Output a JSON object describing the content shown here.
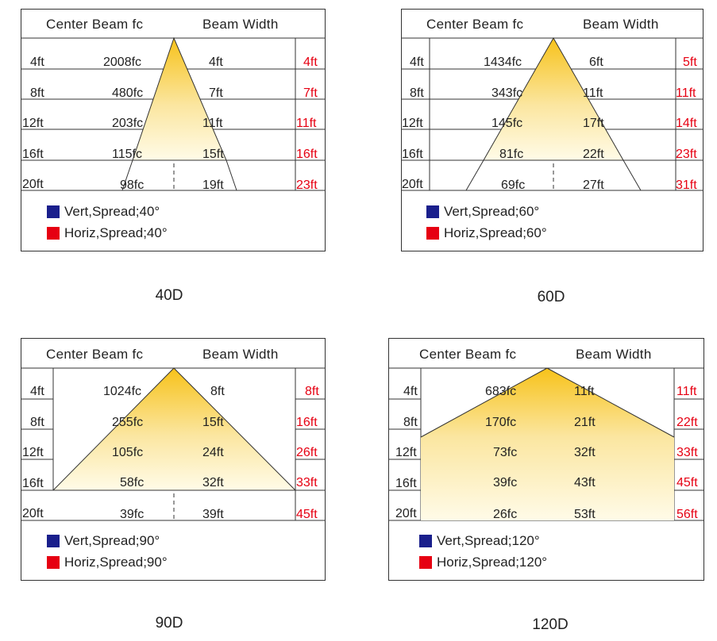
{
  "header": {
    "center_beam": "Center Beam fc",
    "beam_width": "Beam Width"
  },
  "colors": {
    "vert": "#1a1f8c",
    "horiz": "#e60012",
    "cone_top": "#f7c21a",
    "cone_bottom": "#fffbe8"
  },
  "panels": [
    {
      "caption": "40D",
      "legend": {
        "vert": "Vert,Spread;40°",
        "horiz": "Horiz,Spread;40°"
      },
      "rows": [
        {
          "distance": "4ft",
          "fc": "2008fc",
          "vert_width": "4ft",
          "horiz_width": "4ft"
        },
        {
          "distance": "8ft",
          "fc": "480fc",
          "vert_width": "7ft",
          "horiz_width": "7ft"
        },
        {
          "distance": "12ft",
          "fc": "203fc",
          "vert_width": "11ft",
          "horiz_width": "11ft"
        },
        {
          "distance": "16ft",
          "fc": "115fc",
          "vert_width": "15ft",
          "horiz_width": "16ft"
        },
        {
          "distance": "20ft",
          "fc": "98fc",
          "vert_width": "19ft",
          "horiz_width": "23ft"
        }
      ]
    },
    {
      "caption": "60D",
      "legend": {
        "vert": "Vert,Spread;60°",
        "horiz": "Horiz,Spread;60°"
      },
      "rows": [
        {
          "distance": "4ft",
          "fc": "1434fc",
          "vert_width": "6ft",
          "horiz_width": "5ft"
        },
        {
          "distance": "8ft",
          "fc": "343fc",
          "vert_width": "11ft",
          "horiz_width": "11ft"
        },
        {
          "distance": "12ft",
          "fc": "145fc",
          "vert_width": "17ft",
          "horiz_width": "14ft"
        },
        {
          "distance": "16ft",
          "fc": "81fc",
          "vert_width": "22ft",
          "horiz_width": "23ft"
        },
        {
          "distance": "20ft",
          "fc": "69fc",
          "vert_width": "27ft",
          "horiz_width": "31ft"
        }
      ]
    },
    {
      "caption": "90D",
      "legend": {
        "vert": "Vert,Spread;90°",
        "horiz": "Horiz,Spread;90°"
      },
      "rows": [
        {
          "distance": "4ft",
          "fc": "1024fc",
          "vert_width": "8ft",
          "horiz_width": "8ft"
        },
        {
          "distance": "8ft",
          "fc": "255fc",
          "vert_width": "15ft",
          "horiz_width": "16ft"
        },
        {
          "distance": "12ft",
          "fc": "105fc",
          "vert_width": "24ft",
          "horiz_width": "26ft"
        },
        {
          "distance": "16ft",
          "fc": "58fc",
          "vert_width": "32ft",
          "horiz_width": "33ft"
        },
        {
          "distance": "20ft",
          "fc": "39fc",
          "vert_width": "39ft",
          "horiz_width": "45ft"
        }
      ]
    },
    {
      "caption": "120D",
      "legend": {
        "vert": "Vert,Spread;120°",
        "horiz": "Horiz,Spread;120°"
      },
      "rows": [
        {
          "distance": "4ft",
          "fc": "683fc",
          "vert_width": "11ft",
          "horiz_width": "11ft"
        },
        {
          "distance": "8ft",
          "fc": "170fc",
          "vert_width": "21ft",
          "horiz_width": "22ft"
        },
        {
          "distance": "12ft",
          "fc": "73fc",
          "vert_width": "32ft",
          "horiz_width": "33ft"
        },
        {
          "distance": "16ft",
          "fc": "39fc",
          "vert_width": "43ft",
          "horiz_width": "45ft"
        },
        {
          "distance": "20ft",
          "fc": "26fc",
          "vert_width": "53ft",
          "horiz_width": "56ft"
        }
      ]
    }
  ]
}
